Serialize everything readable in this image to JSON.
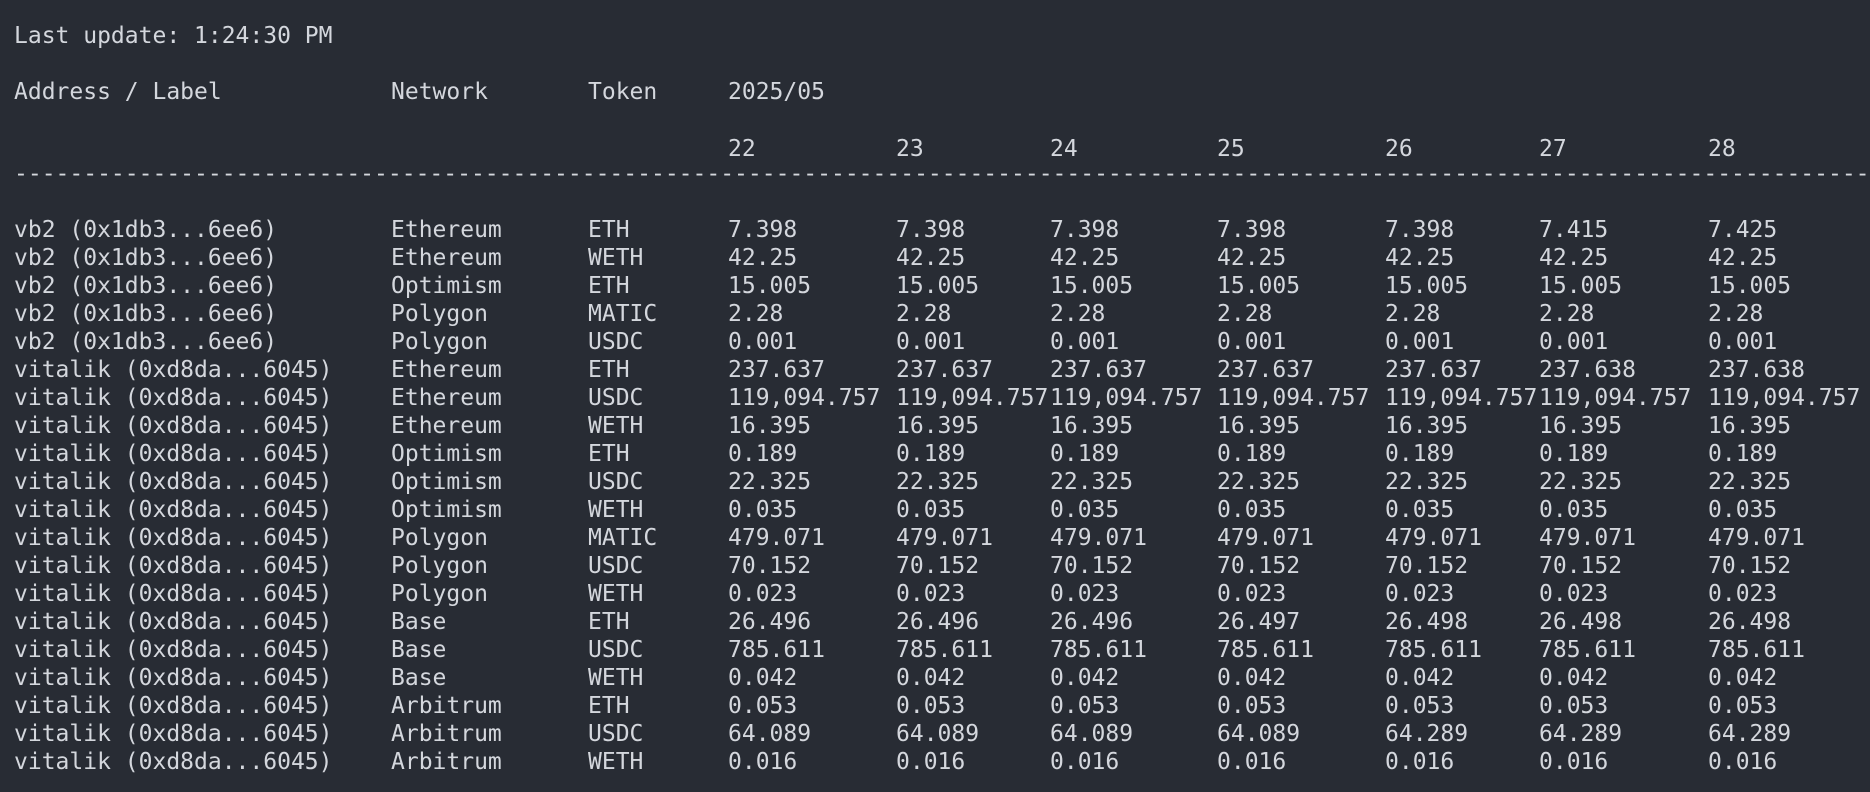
{
  "status": {
    "last_update": "Last update: 1:24:30 PM"
  },
  "header": {
    "address_label": "Address / Label",
    "network": "Network",
    "token": "Token",
    "month": "2025/05"
  },
  "days": [
    "22",
    "23",
    "24",
    "25",
    "26",
    "27",
    "28"
  ],
  "separator": "------------------------------------------------------------------------------------------------------------------------------------------------------",
  "rows": [
    {
      "address": "vb2 (0x1db3...6ee6)",
      "network": "Ethereum",
      "token": "ETH",
      "values": [
        "7.398",
        "7.398",
        "7.398",
        "7.398",
        "7.398",
        "7.415",
        "7.425"
      ]
    },
    {
      "address": "vb2 (0x1db3...6ee6)",
      "network": "Ethereum",
      "token": "WETH",
      "values": [
        "42.25",
        "42.25",
        "42.25",
        "42.25",
        "42.25",
        "42.25",
        "42.25"
      ]
    },
    {
      "address": "vb2 (0x1db3...6ee6)",
      "network": "Optimism",
      "token": "ETH",
      "values": [
        "15.005",
        "15.005",
        "15.005",
        "15.005",
        "15.005",
        "15.005",
        "15.005"
      ]
    },
    {
      "address": "vb2 (0x1db3...6ee6)",
      "network": "Polygon",
      "token": "MATIC",
      "values": [
        "2.28",
        "2.28",
        "2.28",
        "2.28",
        "2.28",
        "2.28",
        "2.28"
      ]
    },
    {
      "address": "vb2 (0x1db3...6ee6)",
      "network": "Polygon",
      "token": "USDC",
      "values": [
        "0.001",
        "0.001",
        "0.001",
        "0.001",
        "0.001",
        "0.001",
        "0.001"
      ]
    },
    {
      "address": "vitalik (0xd8da...6045)",
      "network": "Ethereum",
      "token": "ETH",
      "values": [
        "237.637",
        "237.637",
        "237.637",
        "237.637",
        "237.637",
        "237.638",
        "237.638"
      ]
    },
    {
      "address": "vitalik (0xd8da...6045)",
      "network": "Ethereum",
      "token": "USDC",
      "values": [
        "119,094.757",
        "119,094.757",
        "119,094.757",
        "119,094.757",
        "119,094.757",
        "119,094.757",
        "119,094.757"
      ]
    },
    {
      "address": "vitalik (0xd8da...6045)",
      "network": "Ethereum",
      "token": "WETH",
      "values": [
        "16.395",
        "16.395",
        "16.395",
        "16.395",
        "16.395",
        "16.395",
        "16.395"
      ]
    },
    {
      "address": "vitalik (0xd8da...6045)",
      "network": "Optimism",
      "token": "ETH",
      "values": [
        "0.189",
        "0.189",
        "0.189",
        "0.189",
        "0.189",
        "0.189",
        "0.189"
      ]
    },
    {
      "address": "vitalik (0xd8da...6045)",
      "network": "Optimism",
      "token": "USDC",
      "values": [
        "22.325",
        "22.325",
        "22.325",
        "22.325",
        "22.325",
        "22.325",
        "22.325"
      ]
    },
    {
      "address": "vitalik (0xd8da...6045)",
      "network": "Optimism",
      "token": "WETH",
      "values": [
        "0.035",
        "0.035",
        "0.035",
        "0.035",
        "0.035",
        "0.035",
        "0.035"
      ]
    },
    {
      "address": "vitalik (0xd8da...6045)",
      "network": "Polygon",
      "token": "MATIC",
      "values": [
        "479.071",
        "479.071",
        "479.071",
        "479.071",
        "479.071",
        "479.071",
        "479.071"
      ]
    },
    {
      "address": "vitalik (0xd8da...6045)",
      "network": "Polygon",
      "token": "USDC",
      "values": [
        "70.152",
        "70.152",
        "70.152",
        "70.152",
        "70.152",
        "70.152",
        "70.152"
      ]
    },
    {
      "address": "vitalik (0xd8da...6045)",
      "network": "Polygon",
      "token": "WETH",
      "values": [
        "0.023",
        "0.023",
        "0.023",
        "0.023",
        "0.023",
        "0.023",
        "0.023"
      ]
    },
    {
      "address": "vitalik (0xd8da...6045)",
      "network": "Base",
      "token": "ETH",
      "values": [
        "26.496",
        "26.496",
        "26.496",
        "26.497",
        "26.498",
        "26.498",
        "26.498"
      ]
    },
    {
      "address": "vitalik (0xd8da...6045)",
      "network": "Base",
      "token": "USDC",
      "values": [
        "785.611",
        "785.611",
        "785.611",
        "785.611",
        "785.611",
        "785.611",
        "785.611"
      ]
    },
    {
      "address": "vitalik (0xd8da...6045)",
      "network": "Base",
      "token": "WETH",
      "values": [
        "0.042",
        "0.042",
        "0.042",
        "0.042",
        "0.042",
        "0.042",
        "0.042"
      ]
    },
    {
      "address": "vitalik (0xd8da...6045)",
      "network": "Arbitrum",
      "token": "ETH",
      "values": [
        "0.053",
        "0.053",
        "0.053",
        "0.053",
        "0.053",
        "0.053",
        "0.053"
      ]
    },
    {
      "address": "vitalik (0xd8da...6045)",
      "network": "Arbitrum",
      "token": "USDC",
      "values": [
        "64.089",
        "64.089",
        "64.089",
        "64.089",
        "64.289",
        "64.289",
        "64.289"
      ]
    },
    {
      "address": "vitalik (0xd8da...6045)",
      "network": "Arbitrum",
      "token": "WETH",
      "values": [
        "0.016",
        "0.016",
        "0.016",
        "0.016",
        "0.016",
        "0.016",
        "0.016"
      ]
    }
  ]
}
